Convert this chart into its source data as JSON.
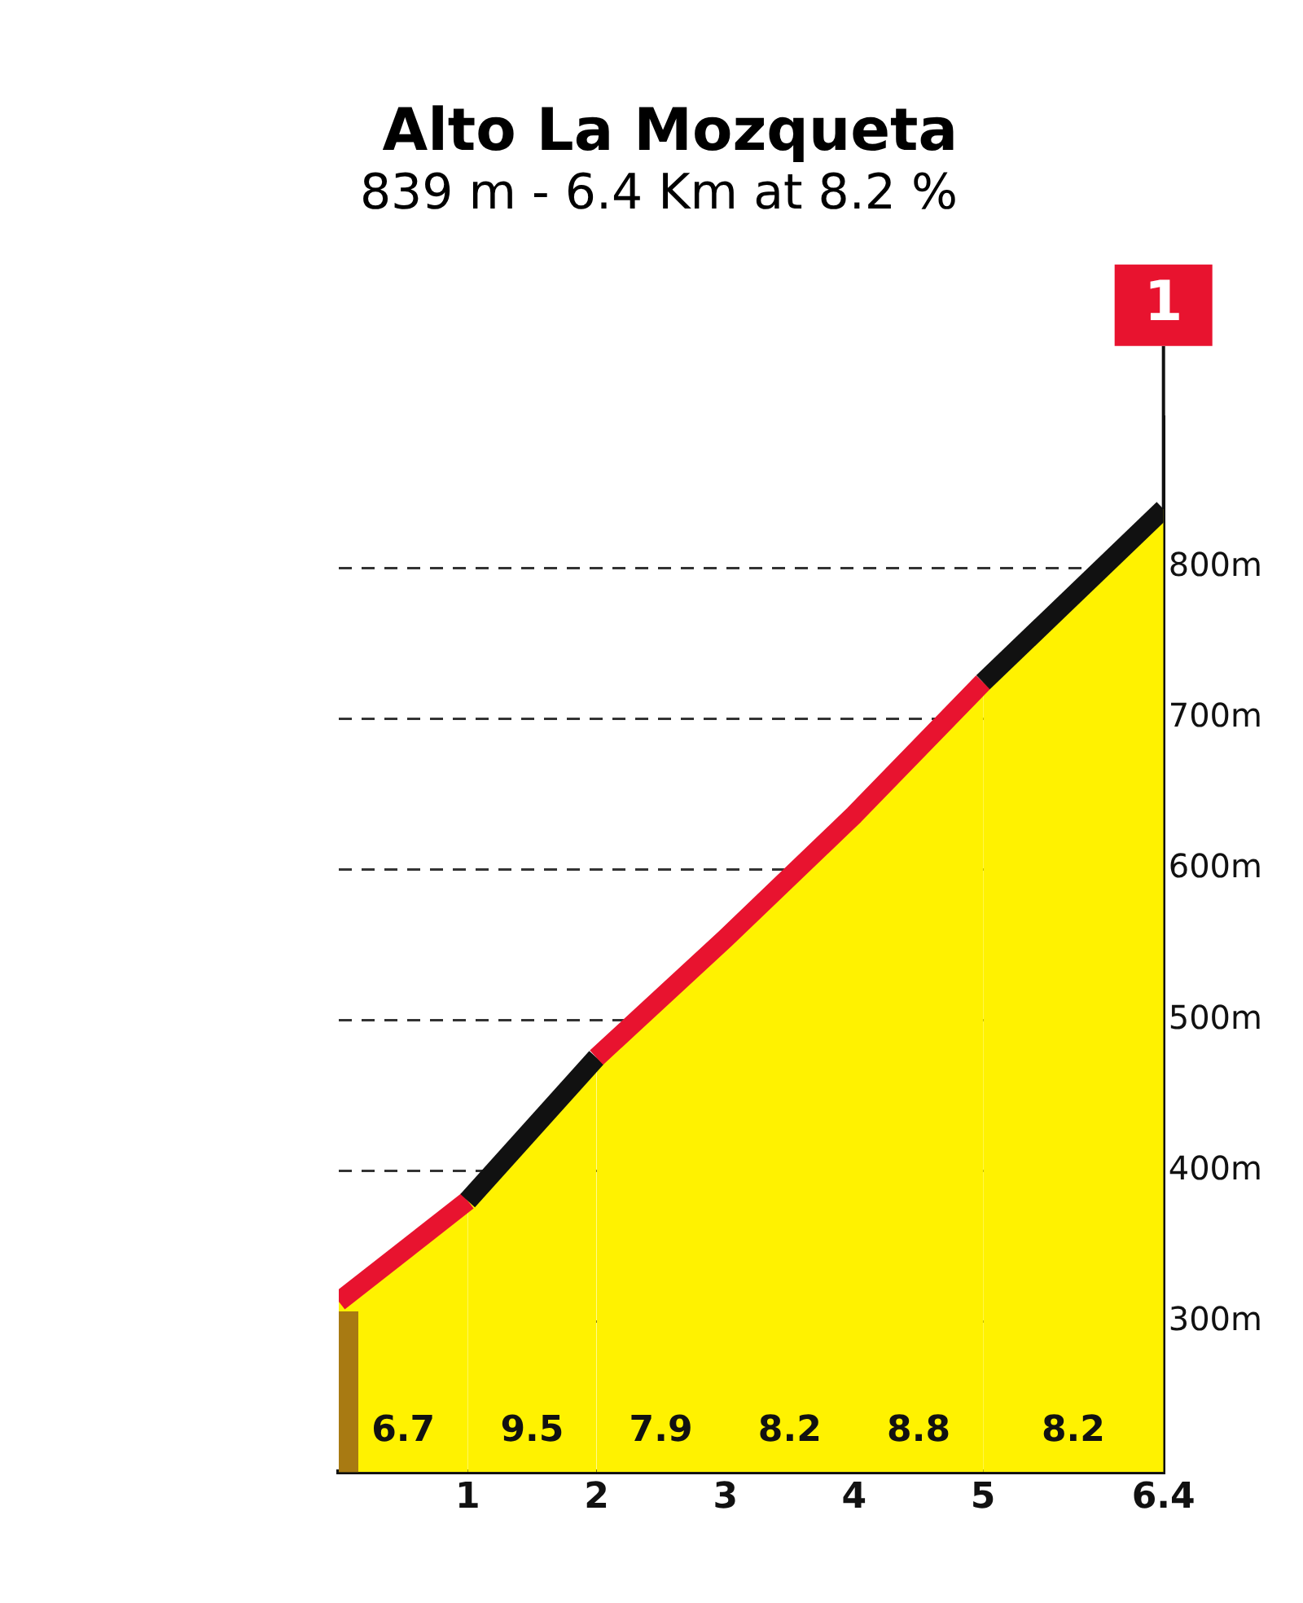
{
  "chart_data": {
    "type": "area",
    "title": "Alto La Mozqueta",
    "subtitle": "839 m - 6.4 Km at 8.2 %",
    "series": [
      {
        "color": "#fff200",
        "colors": [
          "#a87a12",
          "#e8132f",
          "#111111",
          "#e8132f",
          "#e8132f",
          "#e8132f",
          "#111111"
        ],
        "x": [
          0,
          1,
          2,
          3,
          4,
          5,
          6.4
        ],
        "values": [
          313,
          380,
          475,
          554,
          636,
          724,
          839
        ]
      }
    ],
    "xlim": [
      0,
      6.4
    ],
    "xticks": [
      {
        "value": 0,
        "label": null
      },
      1,
      2,
      3,
      4,
      5,
      6.4
    ],
    "ylim": [
      200,
      900
    ],
    "yticks": [
      {
        "value": 300,
        "label": "300m"
      },
      {
        "value": 400,
        "label": "400m"
      },
      {
        "value": 500,
        "label": "500m"
      },
      {
        "value": 600,
        "label": "600m"
      },
      {
        "value": 700,
        "label": "700m"
      },
      {
        "value": 800,
        "label": "800m"
      }
    ],
    "grid": true,
    "line_style": "solid",
    "marker": "none",
    "legend": false,
    "annotations": [
      "6.7",
      "9.5",
      "7.9",
      "8.2",
      "8.8",
      "8.2",
      "1"
    ]
  }
}
